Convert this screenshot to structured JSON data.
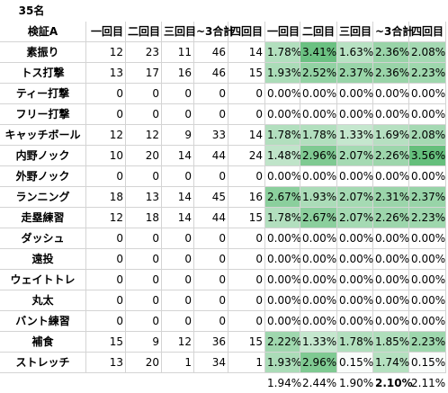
{
  "title": "35名",
  "table": {
    "header": [
      "検証A",
      "一回目",
      "二回目",
      "三回目",
      "~3合計",
      "四回目",
      "一回目",
      "二回目",
      "三回目",
      "~3合計",
      "四回目"
    ],
    "rows": [
      [
        "素振り",
        12,
        23,
        11,
        46,
        14,
        "1.78%",
        "3.41%",
        "1.63%",
        "2.36%",
        "2.08%"
      ],
      [
        "トス打撃",
        13,
        17,
        16,
        46,
        15,
        "1.93%",
        "2.52%",
        "2.37%",
        "2.36%",
        "2.23%"
      ],
      [
        "ティー打撃",
        0,
        0,
        0,
        0,
        0,
        "0.00%",
        "0.00%",
        "0.00%",
        "0.00%",
        "0.00%"
      ],
      [
        "フリー打撃",
        0,
        0,
        0,
        0,
        0,
        "0.00%",
        "0.00%",
        "0.00%",
        "0.00%",
        "0.00%"
      ],
      [
        "キャッチボール",
        12,
        12,
        9,
        33,
        14,
        "1.78%",
        "1.78%",
        "1.33%",
        "1.69%",
        "2.08%"
      ],
      [
        "内野ノック",
        10,
        20,
        14,
        44,
        24,
        "1.48%",
        "2.96%",
        "2.07%",
        "2.26%",
        "3.56%"
      ],
      [
        "外野ノック",
        0,
        0,
        0,
        0,
        0,
        "0.00%",
        "0.00%",
        "0.00%",
        "0.00%",
        "0.00%"
      ],
      [
        "ランニング",
        18,
        13,
        14,
        45,
        16,
        "2.67%",
        "1.93%",
        "2.07%",
        "2.31%",
        "2.37%"
      ],
      [
        "走塁練習",
        12,
        18,
        14,
        44,
        15,
        "1.78%",
        "2.67%",
        "2.07%",
        "2.26%",
        "2.23%"
      ],
      [
        "ダッシュ",
        0,
        0,
        0,
        0,
        0,
        "0.00%",
        "0.00%",
        "0.00%",
        "0.00%",
        "0.00%"
      ],
      [
        "遠投",
        0,
        0,
        0,
        0,
        0,
        "0.00%",
        "0.00%",
        "0.00%",
        "0.00%",
        "0.00%"
      ],
      [
        "ウェイトトレ",
        0,
        0,
        0,
        0,
        0,
        "0.00%",
        "0.00%",
        "0.00%",
        "0.00%",
        "0.00%"
      ],
      [
        "丸太",
        0,
        0,
        0,
        0,
        0,
        "0.00%",
        "0.00%",
        "0.00%",
        "0.00%",
        "0.00%"
      ],
      [
        "バント練習",
        0,
        0,
        0,
        0,
        0,
        "0.00%",
        "0.00%",
        "0.00%",
        "0.00%",
        "0.00%"
      ],
      [
        "補食",
        15,
        9,
        12,
        36,
        15,
        "2.22%",
        "1.33%",
        "1.78%",
        "1.85%",
        "2.23%"
      ],
      [
        "ストレッチ",
        13,
        20,
        1,
        34,
        1,
        "1.93%",
        "2.96%",
        "0.15%",
        "1.74%",
        "0.15%"
      ]
    ],
    "footer": [
      "1.94%",
      "2.44%",
      "1.90%",
      "2.10%",
      "2.11%"
    ]
  }
}
